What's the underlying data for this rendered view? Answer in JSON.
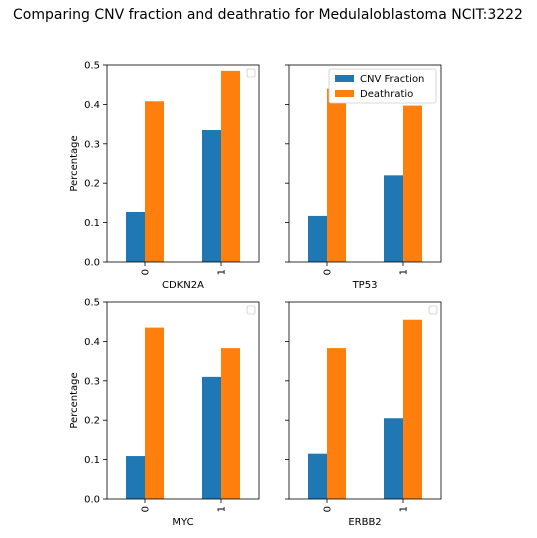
{
  "chart_data": {
    "type": "bar",
    "title": "Comparing CNV fraction and deathratio for Medulaloblastoma NCIT:3222",
    "ylabel": "Percentage",
    "ylim": [
      0,
      0.5
    ],
    "yticks": [
      "0.0",
      "0.1",
      "0.2",
      "0.3",
      "0.4",
      "0.5"
    ],
    "categories": [
      "0",
      "1"
    ],
    "colors": {
      "cnv": "#1f77b4",
      "death": "#ff7f0e"
    },
    "legend": {
      "placement": "upper-right",
      "entries": [
        "CNV Fraction",
        "Deathratio"
      ]
    },
    "subplots": [
      {
        "xlabel": "CDKN2A",
        "series": [
          {
            "name": "CNV Fraction",
            "values": [
              0.127,
              0.335
            ]
          },
          {
            "name": "Deathratio",
            "values": [
              0.408,
              0.485
            ]
          }
        ]
      },
      {
        "xlabel": "TP53",
        "series": [
          {
            "name": "CNV Fraction",
            "values": [
              0.117,
              0.22
            ]
          },
          {
            "name": "Deathratio",
            "values": [
              0.44,
              0.397
            ]
          }
        ]
      },
      {
        "xlabel": "MYC",
        "series": [
          {
            "name": "CNV Fraction",
            "values": [
              0.109,
              0.31
            ]
          },
          {
            "name": "Deathratio",
            "values": [
              0.435,
              0.383
            ]
          }
        ]
      },
      {
        "xlabel": "ERBB2",
        "series": [
          {
            "name": "CNV Fraction",
            "values": [
              0.115,
              0.205
            ]
          },
          {
            "name": "Deathratio",
            "values": [
              0.383,
              0.455
            ]
          }
        ]
      }
    ]
  }
}
